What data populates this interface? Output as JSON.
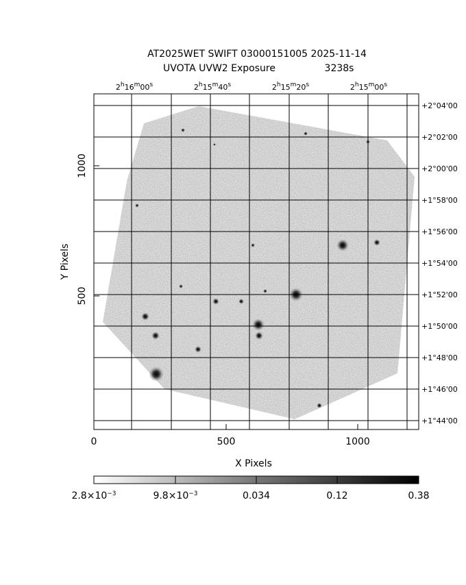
{
  "title": {
    "line1": "AT2025WET SWIFT 03000151005 2025-11-14",
    "line2a": "UVOTA UVW2 Exposure",
    "line2b": "3238s"
  },
  "x_axis": {
    "label": "X Pixels",
    "ticks": [
      "0",
      "500",
      "1000"
    ]
  },
  "y_axis": {
    "label": "Y Pixels",
    "ticks": [
      "500",
      "1000"
    ]
  },
  "ra_ticks": [
    [
      "2",
      "h",
      "16",
      "m",
      "00",
      "s"
    ],
    [
      "2",
      "h",
      "15",
      "m",
      "40",
      "s"
    ],
    [
      "2",
      "h",
      "15",
      "m",
      "20",
      "s"
    ],
    [
      "2",
      "h",
      "15",
      "m",
      "00",
      "s"
    ]
  ],
  "dec_ticks": [
    "+2°04'00",
    "+2°02'00",
    "+2°00'00",
    "+1°58'00",
    "+1°56'00",
    "+1°54'00",
    "+1°52'00",
    "+1°50'00",
    "+1°48'00",
    "+1°46'00",
    "+1°44'00"
  ],
  "colorbar": [
    [
      "2.8×10",
      "−3"
    ],
    [
      "9.8×10",
      "−3"
    ],
    [
      "0.034"
    ],
    [
      "0.12"
    ],
    [
      "0.38"
    ]
  ]
}
